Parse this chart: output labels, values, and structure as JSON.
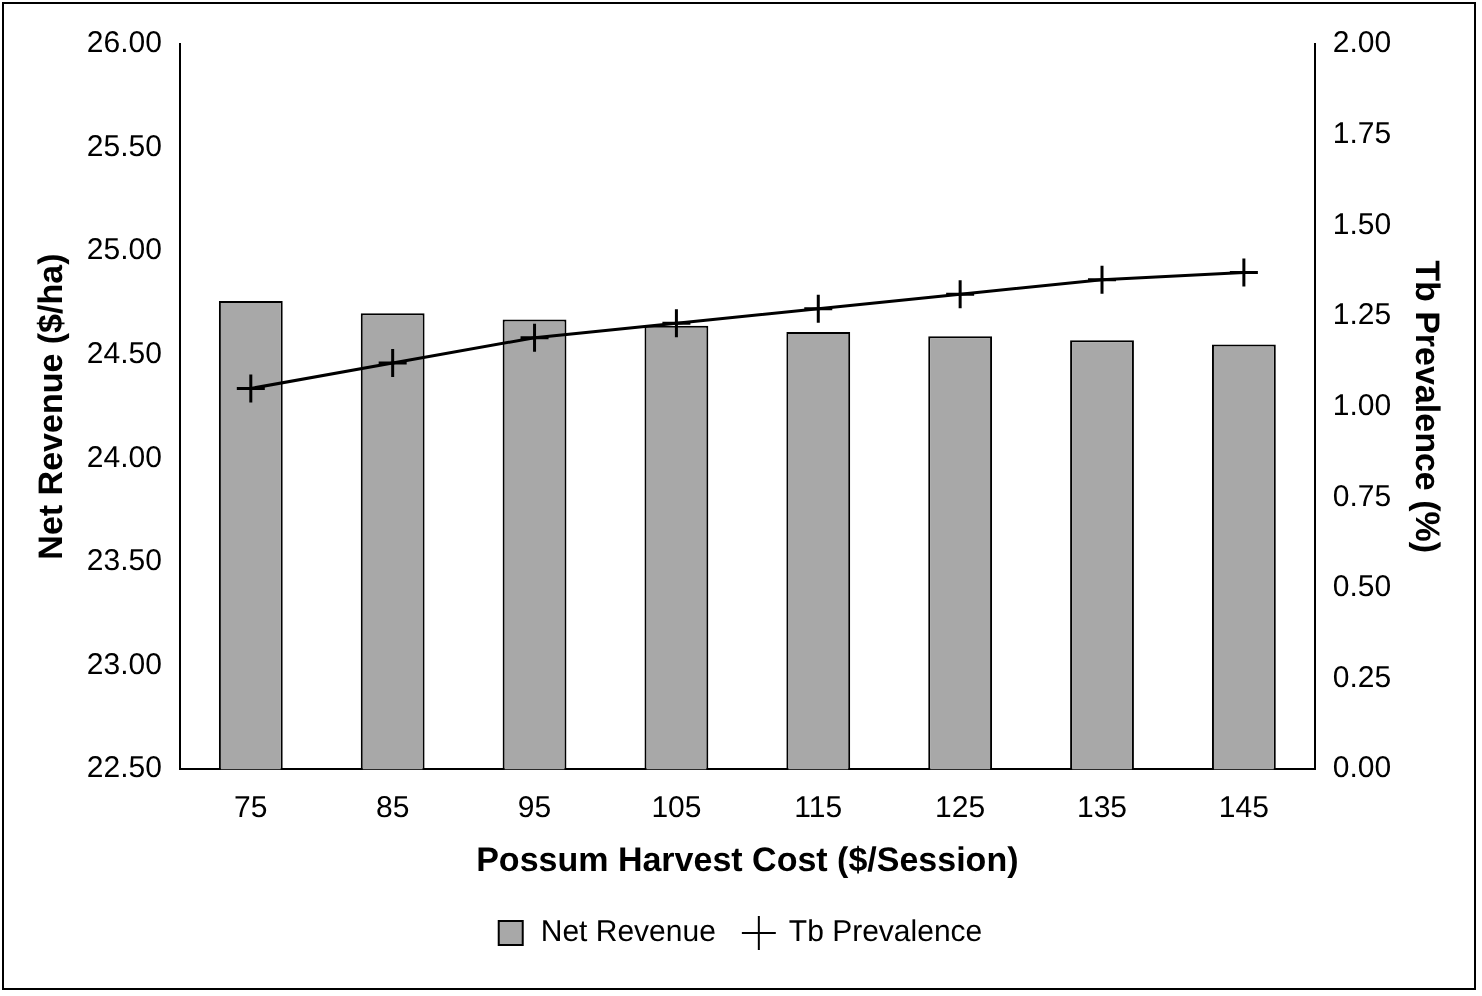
{
  "chart_data": {
    "type": "bar",
    "categories": [
      "75",
      "85",
      "95",
      "105",
      "115",
      "125",
      "135",
      "145"
    ],
    "xlabel": "Possum Harvest Cost ($/Session)",
    "ylabel": "Net Revenue ($/ha)",
    "y2label": "Tb Prevalence (%)",
    "series": [
      {
        "name": "Net Revenue",
        "color": "#a8a8a8",
        "values": [
          24.76,
          24.7,
          24.67,
          24.64,
          24.61,
          24.59,
          24.57,
          24.55
        ]
      },
      {
        "name": "Tb Prevalence",
        "type": "line",
        "axis": "y2",
        "color": "#000000",
        "marker": "cross",
        "values": [
          1.05,
          1.12,
          1.19,
          1.23,
          1.27,
          1.31,
          1.35,
          1.37
        ]
      }
    ],
    "ylim": [
      22.5,
      26
    ],
    "yticks": [
      {
        "value": 22.5,
        "label": "22.50"
      },
      {
        "value": 23,
        "label": "23.00"
      },
      {
        "value": 23.5,
        "label": "23.50"
      },
      {
        "value": 24,
        "label": "24.00"
      },
      {
        "value": 24.5,
        "label": "24.50"
      },
      {
        "value": 25,
        "label": "25.00"
      },
      {
        "value": 25.5,
        "label": "25.50"
      },
      {
        "value": 26,
        "label": "26.00"
      }
    ],
    "y2lim": [
      0,
      2
    ],
    "y2ticks": [
      {
        "value": 0,
        "label": "0.00"
      },
      {
        "value": 0.25,
        "label": "0.25"
      },
      {
        "value": 0.5,
        "label": "0.50"
      },
      {
        "value": 0.75,
        "label": "0.75"
      },
      {
        "value": 1,
        "label": "1.00"
      },
      {
        "value": 1.25,
        "label": "1.25"
      },
      {
        "value": 1.5,
        "label": "1.50"
      },
      {
        "value": 1.75,
        "label": "1.75"
      },
      {
        "value": 2,
        "label": "2.00"
      }
    ],
    "grid": false,
    "legend": "bottom"
  }
}
